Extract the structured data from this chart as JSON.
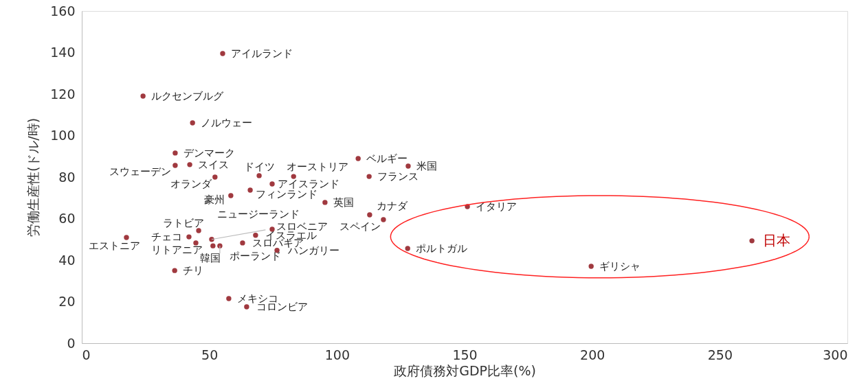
{
  "chart_data": {
    "type": "scatter",
    "xlabel": "政府債務対GDP比率(%)",
    "ylabel": "労働生産性(ドル/時)",
    "xlim": [
      0,
      300
    ],
    "xticks": [
      0,
      50,
      100,
      150,
      200,
      250,
      300
    ],
    "ylim": [
      0,
      160
    ],
    "yticks": [
      0,
      20,
      40,
      60,
      80,
      100,
      120,
      140,
      160
    ],
    "grid": false,
    "marker": "circle",
    "series": [
      {
        "color": "#a0393f",
        "x": [
          55.2,
          24.0,
          43.4,
          36.6,
          42.3,
          36.6,
          52.2,
          69.5,
          83.0,
          74.6,
          66.0,
          58.4,
          95.3,
          108.3,
          127.9,
          112.6,
          112.8,
          118.2,
          151.1,
          127.7,
          199.6,
          262.6,
          17.5,
          42.0,
          45.8,
          44.7,
          50.9,
          51.4,
          54.1,
          63.0,
          74.6,
          68.1,
          76.5,
          36.4,
          57.6,
          64.6
        ],
        "values": [
          139.5,
          119.0,
          106.1,
          91.6,
          86.0,
          85.6,
          80.0,
          80.7,
          80.3,
          76.7,
          73.7,
          71.1,
          67.8,
          88.9,
          85.3,
          80.3,
          61.8,
          59.5,
          65.8,
          45.6,
          37.0,
          49.3,
          50.9,
          51.2,
          54.2,
          48.3,
          50.0,
          46.9,
          46.9,
          48.3,
          54.9,
          52.0,
          44.7,
          35.0,
          21.5,
          17.5
        ]
      }
    ],
    "annotations": [
      {
        "text": "アイルランド",
        "x": 55.2,
        "y": 139.5
      },
      {
        "text": "ルクセンブルグ",
        "x": 24.0,
        "y": 119.0
      },
      {
        "text": "ノルウェー",
        "x": 43.4,
        "y": 106.1
      },
      {
        "text": "デンマーク",
        "x": 36.6,
        "y": 91.6
      },
      {
        "text": "スイス",
        "x": 42.3,
        "y": 86.0
      },
      {
        "text": "スウェーデン",
        "x": 36.6,
        "y": 85.6
      },
      {
        "text": "オランダ",
        "x": 52.2,
        "y": 80.0
      },
      {
        "text": "ドイツ",
        "x": 69.5,
        "y": 80.7
      },
      {
        "text": "オーストリア",
        "x": 83.0,
        "y": 80.3
      },
      {
        "text": "アイスランド",
        "x": 74.6,
        "y": 76.7
      },
      {
        "text": "フィンランド",
        "x": 66.0,
        "y": 73.7
      },
      {
        "text": "豪州",
        "x": 58.4,
        "y": 71.1
      },
      {
        "text": "英国",
        "x": 95.3,
        "y": 67.8
      },
      {
        "text": "ベルギー",
        "x": 108.3,
        "y": 88.9
      },
      {
        "text": "米国",
        "x": 127.9,
        "y": 85.3
      },
      {
        "text": "フランス",
        "x": 112.6,
        "y": 80.3
      },
      {
        "text": "カナダ",
        "x": 112.8,
        "y": 61.8
      },
      {
        "text": "スペイン",
        "x": 118.2,
        "y": 59.5
      },
      {
        "text": "イタリア",
        "x": 151.1,
        "y": 65.8
      },
      {
        "text": "ポルトガル",
        "x": 127.7,
        "y": 45.6
      },
      {
        "text": "ギリシャ",
        "x": 199.6,
        "y": 37.0
      },
      {
        "text": "日本",
        "x": 262.6,
        "y": 49.3
      },
      {
        "text": "エストニア",
        "x": 17.5,
        "y": 50.9
      },
      {
        "text": "チェコ",
        "x": 42.0,
        "y": 51.2
      },
      {
        "text": "ラトビア",
        "x": 45.8,
        "y": 54.2
      },
      {
        "text": "リトアニア",
        "x": 44.7,
        "y": 48.3
      },
      {
        "text": "ニュージーランド",
        "x": 50.9,
        "y": 50.0
      },
      {
        "text": "ポーランド",
        "x": 51.4,
        "y": 46.9
      },
      {
        "text": "韓国",
        "x": 54.1,
        "y": 46.9
      },
      {
        "text": "スロバキア",
        "x": 63.0,
        "y": 48.3
      },
      {
        "text": "スロベニア",
        "x": 74.6,
        "y": 54.9
      },
      {
        "text": "イスラエル",
        "x": 68.1,
        "y": 52.0
      },
      {
        "text": "ハンガリー",
        "x": 76.5,
        "y": 44.7
      },
      {
        "text": "チリ",
        "x": 36.4,
        "y": 35.0
      },
      {
        "text": "メキシコ",
        "x": 57.6,
        "y": 21.5
      },
      {
        "text": "コロンビア",
        "x": 64.6,
        "y": 17.5
      }
    ]
  }
}
